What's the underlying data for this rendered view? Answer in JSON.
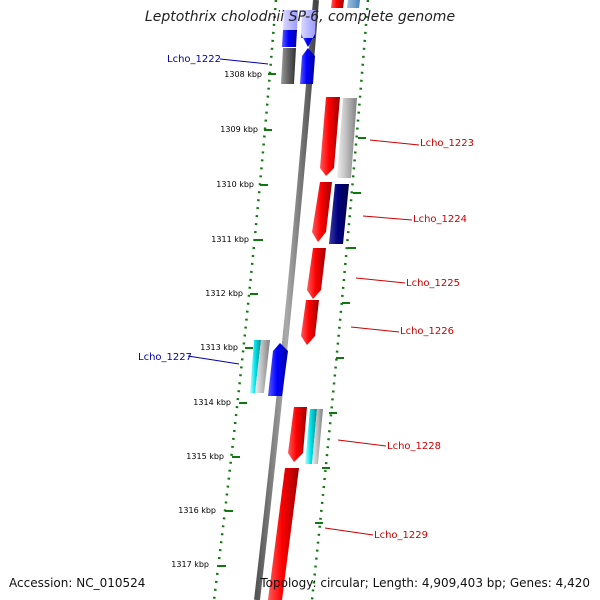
{
  "title": "Leptothrix cholodnii SP-6, complete genome",
  "accession": "Accession: NC_010524",
  "summary": "Topology: circular; Length: 4,909,403 bp; Genes: 4,420",
  "colors": {
    "backbone": "#888888",
    "forward_tick": "#117711",
    "reverse_label": "#cc0000",
    "forward_label": "#0000aa"
  },
  "ticks": [
    {
      "label": "1308 kbp"
    },
    {
      "label": "1309 kbp"
    },
    {
      "label": "1310 kbp"
    },
    {
      "label": "1311 kbp"
    },
    {
      "label": "1312 kbp"
    },
    {
      "label": "1313 kbp"
    },
    {
      "label": "1314 kbp"
    },
    {
      "label": "1315 kbp"
    },
    {
      "label": "1316 kbp"
    },
    {
      "label": "1317 kbp"
    }
  ],
  "genes": [
    {
      "name": "Lcho_1222",
      "strand": "forward"
    },
    {
      "name": "Lcho_1223",
      "strand": "reverse"
    },
    {
      "name": "Lcho_1224",
      "strand": "reverse"
    },
    {
      "name": "Lcho_1225",
      "strand": "reverse"
    },
    {
      "name": "Lcho_1226",
      "strand": "reverse"
    },
    {
      "name": "Lcho_1227",
      "strand": "forward"
    },
    {
      "name": "Lcho_1228",
      "strand": "reverse"
    },
    {
      "name": "Lcho_1229",
      "strand": "reverse"
    }
  ]
}
